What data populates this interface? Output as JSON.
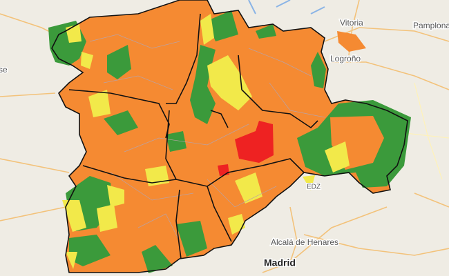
{
  "map": {
    "labels": [
      "Vitoria",
      "Pamplona",
      "Logroño",
      "Alcalá de Henares",
      "Madrid",
      "EDZ",
      "se"
    ]
  }
}
